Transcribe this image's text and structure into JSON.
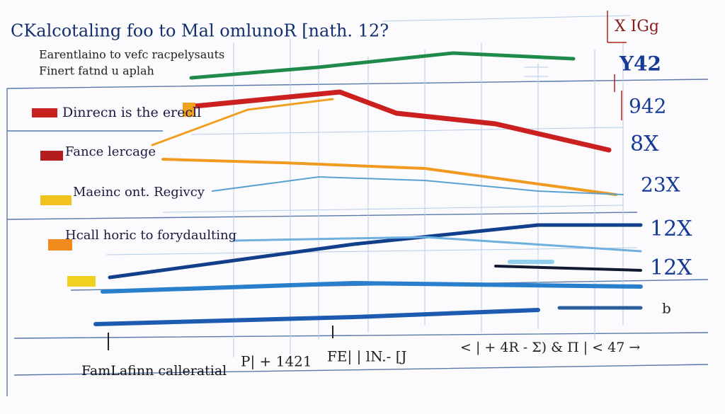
{
  "header": {
    "title": "CKalcotaling foo to Mal omlunoR [nath. 12?",
    "subtitle_lines": [
      "Earentlaino to vefc racpelysauts",
      "Finert fatnd u aplah"
    ]
  },
  "legend": {
    "items": [
      "Dinrecn is the erecll",
      "Fance lercage",
      "Maeinc ont. Regivcy",
      "Hcall horic to forydaulting"
    ]
  },
  "right_labels": [
    "X IGg",
    "Y42",
    "942",
    "8X",
    "23X",
    "12X",
    "12X",
    "b"
  ],
  "footer": {
    "label": "FamLafinn calleratial",
    "notes": [
      "P| + 1421",
      "FE| | lN.- [J",
      "< | + 4R - Σ) & Π | < 47 →"
    ]
  }
}
